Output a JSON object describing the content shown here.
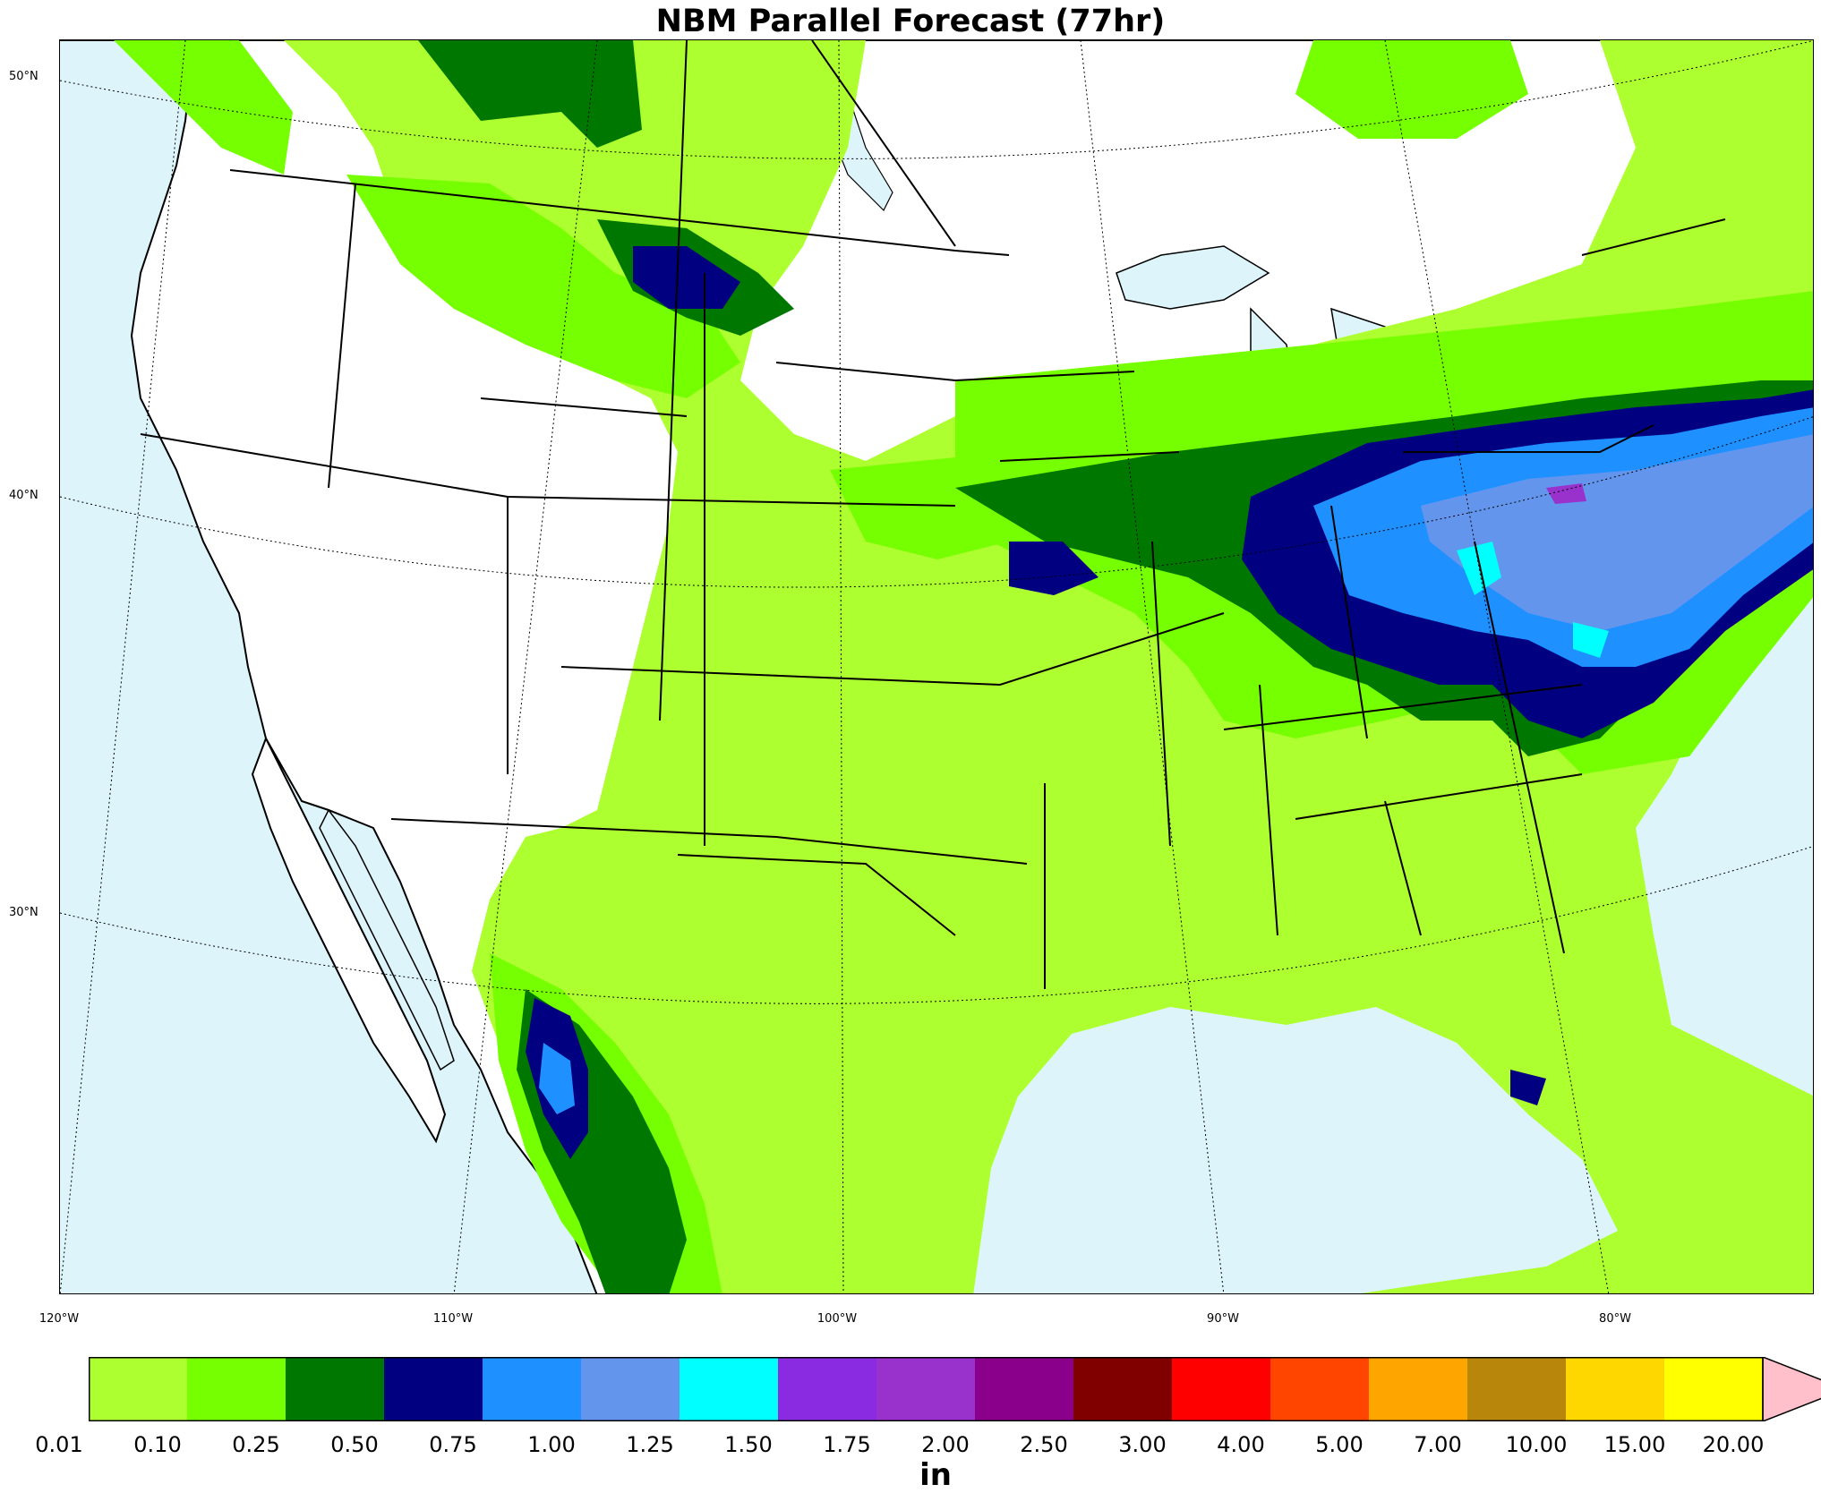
{
  "title": "NBM Parallel Forecast (77hr)",
  "lat_labels": [
    "50°N",
    "40°N",
    "30°N"
  ],
  "lon_labels": [
    "120°W",
    "110°W",
    "100°W",
    "90°W",
    "80°W"
  ],
  "colorbar": {
    "units": "in",
    "ticks": [
      "0.01",
      "0.10",
      "0.25",
      "0.50",
      "0.75",
      "1.00",
      "1.25",
      "1.50",
      "1.75",
      "2.00",
      "2.50",
      "3.00",
      "4.00",
      "5.00",
      "7.00",
      "10.00",
      "15.00",
      "20.00"
    ],
    "colors": [
      "#adff2f",
      "#76ff00",
      "#007800",
      "#000080",
      "#1e90ff",
      "#6495ed",
      "#00ffff",
      "#8a2be2",
      "#9932cc",
      "#8b008b",
      "#800000",
      "#ff0000",
      "#ff4500",
      "#ffa500",
      "#b8860b",
      "#ffd700",
      "#ffff00"
    ],
    "extend_color": "#ffc0cb"
  }
}
